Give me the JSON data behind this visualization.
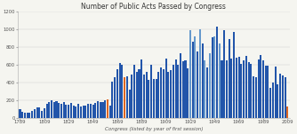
{
  "title": "Number of Public Acts Passed by Congress",
  "xlabel": "Congress (listed by year of first session)",
  "ylabel": "",
  "background_color": "#f5f5f0",
  "plot_bg_color": "#f5f5f0",
  "title_fontsize": 5.5,
  "xlabel_fontsize": 4.0,
  "ytick_fontsize": 3.8,
  "xtick_fontsize": 3.8,
  "ylim": [
    0,
    1200
  ],
  "yticks": [
    0,
    200,
    400,
    600,
    800,
    1000,
    1200
  ],
  "xtick_labels": [
    "1789",
    "1809",
    "1829",
    "1849",
    "1869",
    "1889",
    "1909",
    "1929",
    "1949",
    "1969",
    "1989",
    "2009"
  ],
  "congresses": [
    1789,
    1791,
    1793,
    1795,
    1797,
    1799,
    1801,
    1803,
    1805,
    1807,
    1809,
    1811,
    1813,
    1815,
    1817,
    1819,
    1821,
    1823,
    1825,
    1827,
    1829,
    1831,
    1833,
    1835,
    1837,
    1839,
    1841,
    1843,
    1845,
    1847,
    1849,
    1851,
    1853,
    1855,
    1857,
    1859,
    1861,
    1863,
    1865,
    1867,
    1869,
    1871,
    1873,
    1875,
    1877,
    1879,
    1881,
    1883,
    1885,
    1887,
    1889,
    1891,
    1893,
    1895,
    1897,
    1899,
    1901,
    1903,
    1905,
    1907,
    1909,
    1911,
    1913,
    1915,
    1917,
    1919,
    1921,
    1923,
    1925,
    1927,
    1929,
    1931,
    1933,
    1935,
    1937,
    1939,
    1941,
    1943,
    1945,
    1947,
    1949,
    1951,
    1953,
    1955,
    1957,
    1959,
    1961,
    1963,
    1965,
    1967,
    1969,
    1971,
    1973,
    1975,
    1977,
    1979,
    1981,
    1983,
    1985,
    1987,
    1989,
    1991,
    1993,
    1995,
    1997,
    1999,
    2001,
    2003,
    2005,
    2007,
    2009
  ],
  "values": [
    94,
    63,
    57,
    60,
    58,
    73,
    94,
    113,
    119,
    82,
    111,
    154,
    174,
    195,
    174,
    186,
    167,
    154,
    173,
    145,
    149,
    165,
    140,
    132,
    155,
    130,
    133,
    133,
    158,
    156,
    144,
    171,
    192,
    181,
    175,
    193,
    205,
    138,
    411,
    459,
    554,
    620,
    604,
    457,
    466,
    318,
    487,
    597,
    522,
    547,
    664,
    493,
    516,
    428,
    599,
    443,
    443,
    524,
    573,
    546,
    673,
    523,
    544,
    596,
    659,
    598,
    728,
    642,
    649,
    558,
    996,
    860,
    918,
    748,
    1002,
    843,
    646,
    568,
    734,
    908,
    921,
    1028,
    839,
    649,
    992,
    649,
    895,
    666,
    969,
    677,
    695,
    607,
    649,
    702,
    634,
    613,
    473,
    458,
    664,
    713,
    650,
    590,
    589,
    337,
    394,
    580,
    377,
    504,
    482,
    460,
    130
  ],
  "color_dark": "#2255aa",
  "color_light": "#6699cc",
  "color_orange": "#dd6622",
  "orange_indices": [
    36,
    43,
    110
  ],
  "light_indices": [
    70,
    72,
    74,
    76,
    78,
    80,
    82
  ]
}
